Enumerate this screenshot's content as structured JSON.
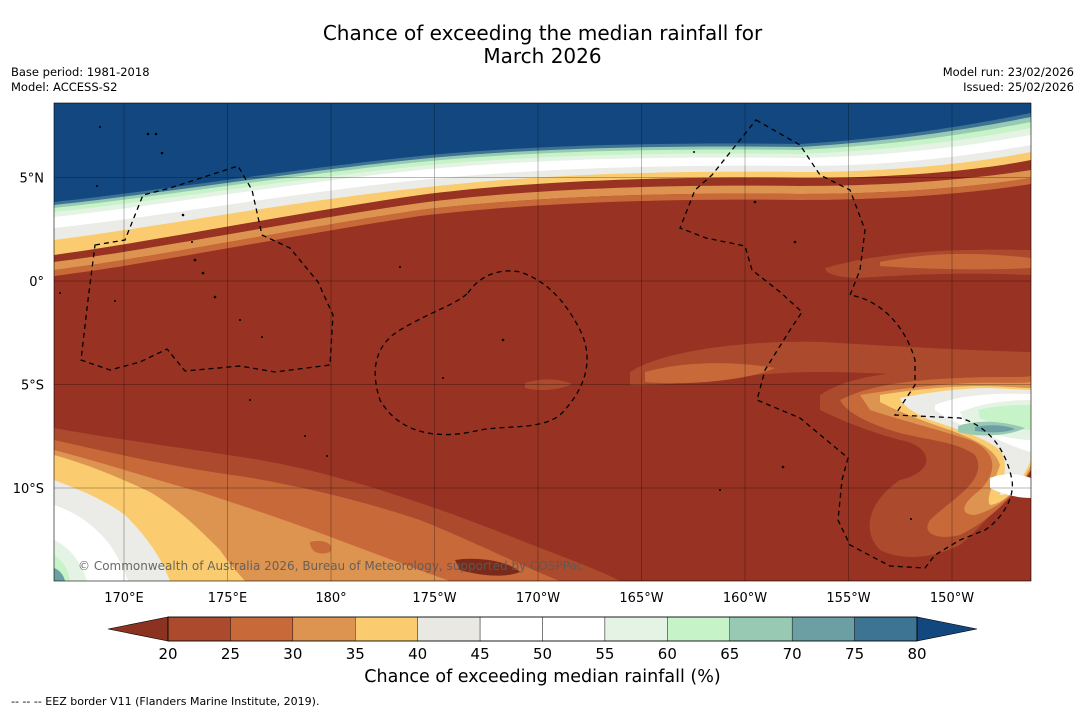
{
  "title": {
    "line1": "Chance of exceeding the median rainfall for",
    "line2": "March 2026"
  },
  "meta": {
    "base_period": "Base period: 1981-2018",
    "model": "Model: ACCESS-S2",
    "model_run": "Model run: 23/02/2026",
    "issued": "Issued: 25/02/2026"
  },
  "map": {
    "lat_labels": [
      "5°N",
      "0°",
      "5°S",
      "10°S"
    ],
    "lon_labels": [
      "170°E",
      "175°E",
      "180°",
      "175°W",
      "170°W",
      "165°W",
      "160°W",
      "155°W",
      "150°W"
    ],
    "lat_values": [
      5,
      0,
      -5,
      -10
    ],
    "lon_values": [
      170,
      175,
      180,
      185,
      190,
      195,
      200,
      205,
      210
    ],
    "copyright": "© Commonwealth of Australia 2026, Bureau of Meteorology, supported by COSPPac"
  },
  "colorbar": {
    "ticks": [
      "20",
      "25",
      "30",
      "35",
      "40",
      "45",
      "50",
      "55",
      "60",
      "65",
      "70",
      "75",
      "80"
    ],
    "colors": [
      "#8b3220",
      "#ab4a2c",
      "#c8693a",
      "#dd9450",
      "#fbcc6f",
      "#eae8e3",
      "#ffffff",
      "#ffffff",
      "#e4f3e3",
      "#c7f3c9",
      "#98c9b2",
      "#6c9fa3",
      "#3d7393",
      "#12487f"
    ],
    "title": "Chance of exceeding median rainfall (%)"
  },
  "footnote": "--  --  -- EEZ border V11 (Flanders Marine Institute, 2019)."
}
